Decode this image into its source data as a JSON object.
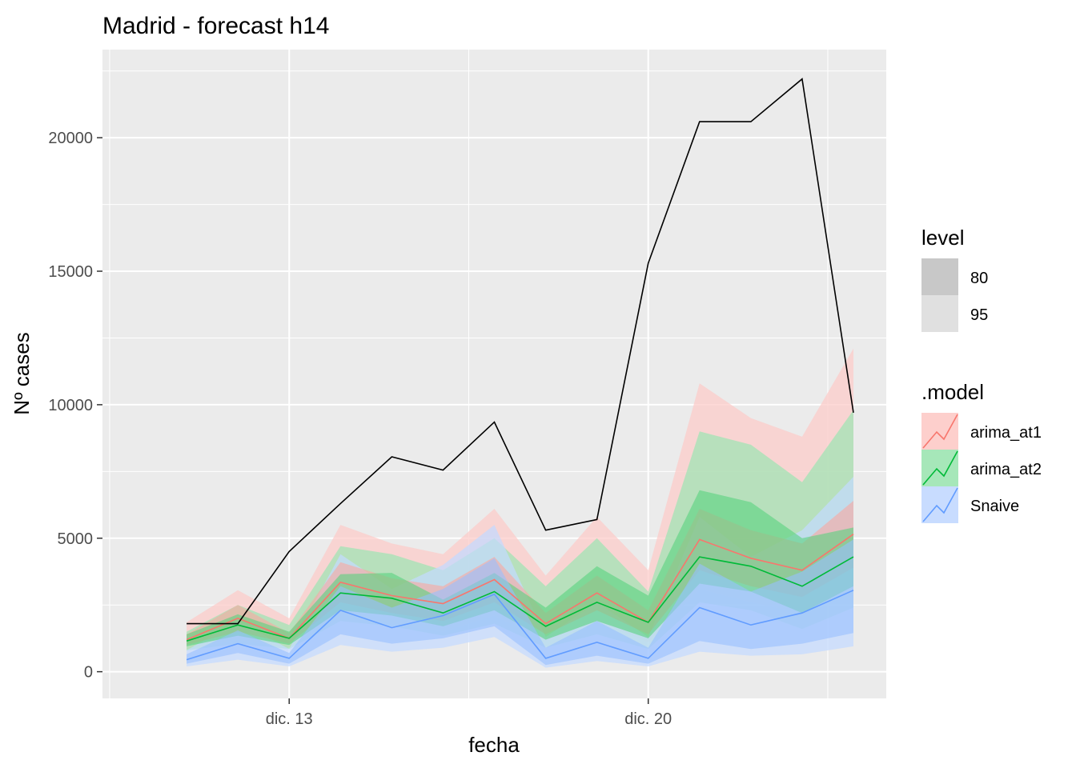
{
  "chart_data": {
    "type": "line",
    "title": "Madrid - forecast h14",
    "xlabel": "fecha",
    "ylabel": "Nº cases",
    "x": [
      "2020-12-10",
      "2020-12-11",
      "2020-12-12",
      "2020-12-13",
      "2020-12-14",
      "2020-12-15",
      "2020-12-16",
      "2020-12-17",
      "2020-12-18",
      "2020-12-19",
      "2020-12-20",
      "2020-12-21",
      "2020-12-22",
      "2020-12-23",
      "2020-12-24"
    ],
    "x_ticks": [
      {
        "date": "2020-12-13",
        "label": "dic. 13"
      },
      {
        "date": "2020-12-20",
        "label": "dic. 20"
      }
    ],
    "xlim": [
      "2020-12-10",
      "2020-12-24"
    ],
    "y_ticks": [
      0,
      5000,
      10000,
      15000,
      20000
    ],
    "y_tick_labels": [
      "0",
      "5000",
      "10000",
      "15000",
      "20000"
    ],
    "ylim": [
      -1000,
      23300
    ],
    "grid": true,
    "legend_position": "right",
    "actual": {
      "dates": [
        "2020-12-11",
        "2020-12-12",
        "2020-12-13",
        "2020-12-14",
        "2020-12-15",
        "2020-12-16",
        "2020-12-17",
        "2020-12-18",
        "2020-12-19",
        "2020-12-20",
        "2020-12-21",
        "2020-12-22",
        "2020-12-23",
        "2020-12-24"
      ],
      "values": [
        1800,
        1800,
        4500,
        6300,
        8050,
        7550,
        9350,
        5300,
        5700,
        15300,
        20600,
        20600,
        22200,
        9700
      ],
      "color": "#000000"
    },
    "series": [
      {
        "name": "arima_at1",
        "color": "#F8766D",
        "dates": [
          "2020-12-11",
          "2020-12-12",
          "2020-12-13",
          "2020-12-14",
          "2020-12-15",
          "2020-12-16",
          "2020-12-17",
          "2020-12-18",
          "2020-12-19",
          "2020-12-20",
          "2020-12-21",
          "2020-12-22",
          "2020-12-23",
          "2020-12-24"
        ],
        "mean": [
          1200,
          2000,
          1250,
          3350,
          2850,
          2550,
          3450,
          1800,
          2950,
          1850,
          4950,
          4250,
          3800,
          5150
        ],
        "lo80": [
          1000,
          1500,
          1050,
          2600,
          2200,
          1900,
          2600,
          1400,
          2300,
          1400,
          3800,
          3200,
          2800,
          3900
        ],
        "hi80": [
          1400,
          2500,
          1450,
          4100,
          3500,
          3200,
          4300,
          2200,
          3600,
          2300,
          6100,
          5300,
          4800,
          6400
        ],
        "lo95": [
          850,
          1200,
          900,
          2200,
          1800,
          1500,
          2100,
          1150,
          1900,
          1100,
          3100,
          2600,
          2200,
          3100
        ],
        "hi95": [
          1850,
          3050,
          2000,
          5500,
          4800,
          4400,
          6100,
          3600,
          5800,
          3800,
          10800,
          9500,
          8800,
          12100
        ]
      },
      {
        "name": "arima_at2",
        "color": "#00BA38",
        "dates": [
          "2020-12-11",
          "2020-12-12",
          "2020-12-13",
          "2020-12-14",
          "2020-12-15",
          "2020-12-16",
          "2020-12-17",
          "2020-12-18",
          "2020-12-19",
          "2020-12-20",
          "2020-12-21",
          "2020-12-22",
          "2020-12-23",
          "2020-12-24"
        ],
        "mean": [
          1150,
          1750,
          1250,
          2950,
          2750,
          2200,
          3000,
          1700,
          2600,
          1850,
          4300,
          3950,
          3200,
          4300
        ],
        "lo80": [
          950,
          1350,
          1000,
          2300,
          2100,
          1700,
          2300,
          1200,
          1900,
          1250,
          3300,
          3000,
          2200,
          3200
        ],
        "hi80": [
          1400,
          2150,
          1500,
          3650,
          3700,
          2700,
          3700,
          2400,
          3950,
          2850,
          6800,
          6350,
          5000,
          5400
        ],
        "lo95": [
          800,
          1050,
          850,
          1900,
          1700,
          1350,
          1800,
          900,
          1400,
          850,
          2600,
          2300,
          1600,
          2400
        ],
        "hi95": [
          1500,
          2500,
          1750,
          4700,
          4400,
          3800,
          5000,
          3200,
          5000,
          3000,
          9000,
          8500,
          7100,
          9800
        ]
      },
      {
        "name": "Snaive",
        "color": "#619CFF",
        "dates": [
          "2020-12-11",
          "2020-12-12",
          "2020-12-13",
          "2020-12-14",
          "2020-12-15",
          "2020-12-16",
          "2020-12-17",
          "2020-12-18",
          "2020-12-19",
          "2020-12-20",
          "2020-12-21",
          "2020-12-22",
          "2020-12-23",
          "2020-12-24"
        ],
        "mean": [
          450,
          1050,
          500,
          2300,
          1650,
          2100,
          2900,
          500,
          1100,
          500,
          2400,
          1750,
          2200,
          3050
        ],
        "lo80": [
          300,
          700,
          300,
          1400,
          1050,
          1250,
          1700,
          250,
          600,
          300,
          1150,
          850,
          1050,
          1450
        ],
        "hi80": [
          650,
          1550,
          700,
          3200,
          2400,
          3100,
          4250,
          900,
          1900,
          900,
          4050,
          3000,
          3750,
          4950
        ],
        "lo95": [
          200,
          450,
          200,
          1000,
          750,
          900,
          1300,
          150,
          400,
          200,
          750,
          600,
          650,
          950
        ],
        "hi95": [
          800,
          1900,
          850,
          4400,
          3100,
          4000,
          5500,
          1300,
          2600,
          1300,
          5800,
          4300,
          5300,
          7300
        ]
      }
    ],
    "legend_level": {
      "title": "level",
      "entries": [
        {
          "label": "80",
          "color": "#c8c8c8"
        },
        {
          "label": "95",
          "color": "#e0e0e0"
        }
      ]
    },
    "legend_model": {
      "title": ".model",
      "entries": [
        {
          "label": "arima_at1",
          "color": "#F8766D"
        },
        {
          "label": "arima_at2",
          "color": "#00BA38"
        },
        {
          "label": "Snaive",
          "color": "#619CFF"
        }
      ]
    },
    "panel_background": "#EBEBEB",
    "gridline_color": "#FFFFFF"
  }
}
